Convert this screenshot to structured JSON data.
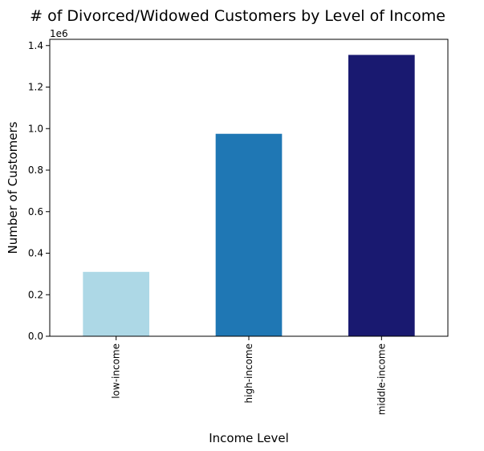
{
  "chart_data": {
    "type": "bar",
    "title": "# of Divorced/Widowed Customers by Level of Income",
    "xlabel": "Income Level",
    "ylabel": "Number of Customers",
    "y_scale_label": "1e6",
    "ylim": [
      0,
      1.43
    ],
    "yticks": [
      "0.0",
      "0.2",
      "0.4",
      "0.6",
      "0.8",
      "1.0",
      "1.2",
      "1.4"
    ],
    "categories": [
      "low-income",
      "high-income",
      "middle-income"
    ],
    "values": [
      0.31,
      0.975,
      1.355
    ],
    "colors": [
      "#add8e6",
      "#1f77b4",
      "#191970"
    ],
    "grid": false,
    "legend": "none"
  }
}
